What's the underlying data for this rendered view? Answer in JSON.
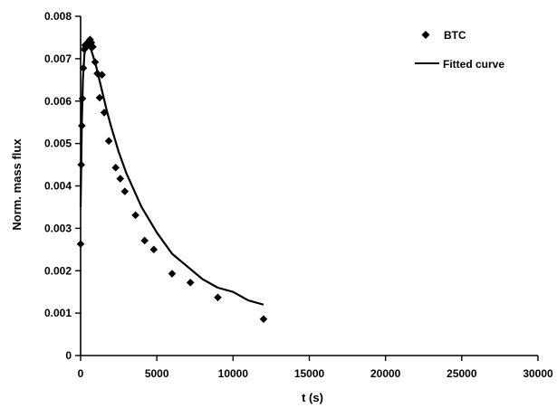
{
  "chart_data": {
    "type": "scatter",
    "xlabel": "t (s)",
    "ylabel": "Norm. mass flux",
    "xlim": [
      0,
      30000
    ],
    "ylim": [
      0,
      0.008
    ],
    "x_ticks": [
      0,
      5000,
      10000,
      15000,
      20000,
      25000,
      30000
    ],
    "y_ticks": [
      0,
      0.001,
      0.002,
      0.003,
      0.004,
      0.005,
      0.006,
      0.007,
      0.008
    ],
    "x_tick_labels": [
      "0",
      "5000",
      "10000",
      "15000",
      "20000",
      "25000",
      "30000"
    ],
    "y_tick_labels": [
      "0",
      "0.001",
      "0.002",
      "0.003",
      "0.004",
      "0.005",
      "0.006",
      "0.007",
      "0.008"
    ],
    "grid": false,
    "legend_position": "top-right",
    "series": [
      {
        "name": "BTC",
        "kind": "scatter",
        "marker": "diamond",
        "points": [
          [
            0,
            0.00263
          ],
          [
            40,
            0.0045
          ],
          [
            80,
            0.00542
          ],
          [
            120,
            0.00606
          ],
          [
            180,
            0.00678
          ],
          [
            240,
            0.00722
          ],
          [
            300,
            0.00732
          ],
          [
            380,
            0.00728
          ],
          [
            460,
            0.00738
          ],
          [
            540,
            0.00736
          ],
          [
            620,
            0.00745
          ],
          [
            700,
            0.00738
          ],
          [
            800,
            0.00728
          ],
          [
            950,
            0.00692
          ],
          [
            1100,
            0.00665
          ],
          [
            1250,
            0.00608
          ],
          [
            1400,
            0.00662
          ],
          [
            1550,
            0.00573
          ],
          [
            1850,
            0.00506
          ],
          [
            2300,
            0.00443
          ],
          [
            2600,
            0.00417
          ],
          [
            2900,
            0.00387
          ],
          [
            3600,
            0.00331
          ],
          [
            4200,
            0.00271
          ],
          [
            4800,
            0.0025
          ],
          [
            6000,
            0.00193
          ],
          [
            7200,
            0.00172
          ],
          [
            9000,
            0.00137
          ],
          [
            12000,
            0.00086
          ]
        ]
      },
      {
        "name": "Fitted curve",
        "kind": "line",
        "points": [
          [
            0,
            0.0035
          ],
          [
            80,
            0.0055
          ],
          [
            150,
            0.0065
          ],
          [
            250,
            0.0071
          ],
          [
            350,
            0.0073
          ],
          [
            500,
            0.0073
          ],
          [
            700,
            0.0072
          ],
          [
            1000,
            0.00685
          ],
          [
            1300,
            0.0064
          ],
          [
            1700,
            0.0058
          ],
          [
            2000,
            0.0054
          ],
          [
            2500,
            0.0048
          ],
          [
            3000,
            0.0043
          ],
          [
            3500,
            0.0039
          ],
          [
            4000,
            0.0035
          ],
          [
            5000,
            0.0029
          ],
          [
            6000,
            0.0024
          ],
          [
            7000,
            0.0021
          ],
          [
            8000,
            0.0018
          ],
          [
            9000,
            0.0016
          ],
          [
            10000,
            0.0015
          ],
          [
            11000,
            0.0013
          ],
          [
            12000,
            0.0012
          ]
        ]
      }
    ]
  }
}
